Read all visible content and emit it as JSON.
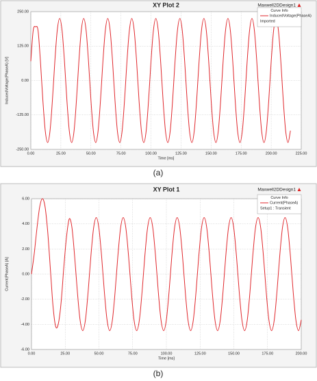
{
  "chart_data": [
    {
      "type": "line",
      "title": "XY Plot 2",
      "design": "Maxwell2DDesign1",
      "caption": "(a)",
      "xlabel": "Time [ms]",
      "ylabel": "InducedVoltage(PhaseA) [V]",
      "legend_title": "Curve Info",
      "grid": true,
      "x": [
        0,
        2,
        4,
        6,
        8,
        10,
        12,
        14,
        16,
        18,
        20,
        22,
        24,
        26,
        28,
        30,
        32,
        34,
        36,
        38,
        40,
        42,
        44,
        46,
        48,
        50,
        52,
        54,
        56,
        58,
        60,
        62,
        64,
        66,
        68,
        70,
        72,
        74,
        76,
        78,
        80,
        82,
        84,
        86,
        88,
        90,
        92,
        94,
        96,
        98,
        100,
        102,
        104,
        106,
        108,
        110,
        112,
        114,
        116,
        118,
        120,
        122,
        124,
        126,
        128,
        130,
        132,
        134,
        136,
        138,
        140,
        142,
        144,
        146,
        148,
        150,
        152,
        154,
        156,
        158,
        160,
        162,
        164,
        166,
        168,
        170,
        172,
        174,
        176,
        178,
        180,
        182,
        184,
        186,
        188,
        190,
        192,
        194,
        196,
        198,
        200,
        202,
        204,
        206,
        208,
        210,
        212,
        214,
        216
      ],
      "series": [
        {
          "name": "InducedVoltage(PhaseA)",
          "source": "Imported",
          "color": "#e0262b",
          "values": [
            70,
            182,
            195,
            182,
            70,
            -70,
            -182,
            -225,
            -182,
            -70,
            70,
            182,
            225,
            182,
            70,
            -70,
            -182,
            -225,
            -182,
            -70,
            70,
            182,
            225,
            182,
            70,
            -70,
            -182,
            -225,
            -182,
            -70,
            70,
            182,
            225,
            182,
            70,
            -70,
            -182,
            -225,
            -182,
            -70,
            70,
            182,
            225,
            182,
            70,
            -70,
            -182,
            -225,
            -182,
            -70,
            70,
            182,
            225,
            182,
            70,
            -70,
            -182,
            -225,
            -182,
            -70,
            70,
            182,
            225,
            182,
            70,
            -70,
            -182,
            -225,
            -182,
            -70,
            70,
            182,
            225,
            182,
            70,
            -70,
            -182,
            -225,
            -182,
            -70,
            70,
            182,
            225,
            182,
            70,
            -70,
            -182,
            -225,
            -182,
            -70,
            70,
            182,
            225,
            182,
            70,
            -70,
            -182,
            -225,
            -182,
            -70,
            70,
            182,
            225,
            182,
            70,
            -70,
            -182,
            -225,
            -182
          ]
        }
      ],
      "xlim": [
        0,
        225
      ],
      "xticks": [
        {
          "value": 0,
          "label": "0.00"
        },
        {
          "value": 25,
          "label": "25.00"
        },
        {
          "value": 50,
          "label": "50.00"
        },
        {
          "value": 75,
          "label": "75.00"
        },
        {
          "value": 100,
          "label": "100.00"
        },
        {
          "value": 125,
          "label": "125.00"
        },
        {
          "value": 150,
          "label": "150.00"
        },
        {
          "value": 175,
          "label": "175.00"
        },
        {
          "value": 200,
          "label": "200.00"
        },
        {
          "value": 225,
          "label": "225.00"
        }
      ],
      "ylim": [
        -250,
        250
      ],
      "yticks": [
        {
          "value": -250,
          "label": "-250.00"
        },
        {
          "value": -125,
          "label": "-125.00"
        },
        {
          "value": 0,
          "label": "0.00"
        },
        {
          "value": 125,
          "label": "125.00"
        },
        {
          "value": 250,
          "label": "250.00"
        }
      ]
    },
    {
      "type": "line",
      "title": "XY Plot 1",
      "design": "Maxwell2DDesign1",
      "caption": "(b)",
      "xlabel": "Time [ms]",
      "ylabel": "Current(PhaseA) [A]",
      "legend_title": "Curve Info",
      "grid": true,
      "x": [
        0,
        2,
        4,
        6,
        8,
        10,
        12,
        14,
        16,
        18,
        20,
        22,
        24,
        26,
        28,
        30,
        32,
        34,
        36,
        38,
        40,
        42,
        44,
        46,
        48,
        50,
        52,
        54,
        56,
        58,
        60,
        62,
        64,
        66,
        68,
        70,
        72,
        74,
        76,
        78,
        80,
        82,
        84,
        86,
        88,
        90,
        92,
        94,
        96,
        98,
        100,
        102,
        104,
        106,
        108,
        110,
        112,
        114,
        116,
        118,
        120,
        122,
        124,
        126,
        128,
        130,
        132,
        134,
        136,
        138,
        140,
        142,
        144,
        146,
        148,
        150,
        152,
        154,
        156,
        158,
        160,
        162,
        164,
        166,
        168,
        170,
        172,
        174,
        176,
        178,
        180,
        182,
        184,
        186,
        188,
        190,
        192,
        194,
        196,
        198,
        200
      ],
      "series": [
        {
          "name": "Current(PhaseA)",
          "source": "Setup1 : Transient",
          "color": "#e0262b",
          "values": [
            0,
            1.6,
            3.6,
            5.3,
            6.0,
            5.4,
            3.4,
            0.4,
            -2.6,
            -4.2,
            -3.9,
            -2.2,
            0.6,
            3.0,
            4.4,
            3.7,
            1.39,
            -1.39,
            -3.64,
            -4.5,
            -3.64,
            -1.39,
            1.39,
            3.64,
            4.5,
            3.64,
            1.39,
            -1.39,
            -3.64,
            -4.5,
            -3.64,
            -1.39,
            1.39,
            3.64,
            4.5,
            3.64,
            1.39,
            -1.39,
            -3.64,
            -4.5,
            -3.64,
            -1.39,
            1.39,
            3.64,
            4.5,
            3.64,
            1.39,
            -1.39,
            -3.64,
            -4.5,
            -3.64,
            -1.39,
            1.39,
            3.64,
            4.5,
            3.64,
            1.39,
            -1.39,
            -3.64,
            -4.5,
            -3.64,
            -1.39,
            1.39,
            3.64,
            4.5,
            3.64,
            1.39,
            -1.39,
            -3.64,
            -4.5,
            -3.64,
            -1.39,
            1.39,
            3.64,
            4.5,
            3.64,
            1.39,
            -1.39,
            -3.64,
            -4.5,
            -3.64,
            -1.39,
            1.39,
            3.64,
            4.5,
            3.64,
            1.39,
            -1.39,
            -3.64,
            -4.5,
            -3.64,
            -1.39,
            1.39,
            3.64,
            4.5,
            3.64,
            1.39,
            -1.39,
            -3.64,
            -4.5,
            -3.64
          ]
        }
      ],
      "xlim": [
        0,
        200
      ],
      "xticks": [
        {
          "value": 0,
          "label": "0.00"
        },
        {
          "value": 25,
          "label": "25.00"
        },
        {
          "value": 50,
          "label": "50.00"
        },
        {
          "value": 75,
          "label": "75.00"
        },
        {
          "value": 100,
          "label": "100.00"
        },
        {
          "value": 125,
          "label": "125.00"
        },
        {
          "value": 150,
          "label": "150.00"
        },
        {
          "value": 175,
          "label": "175.00"
        },
        {
          "value": 200,
          "label": "200.00"
        }
      ],
      "ylim": [
        -6,
        6
      ],
      "yticks": [
        {
          "value": -6,
          "label": "-6.00"
        },
        {
          "value": -4,
          "label": "-4.00"
        },
        {
          "value": -2,
          "label": "-2.00"
        },
        {
          "value": 0,
          "label": "0.00"
        },
        {
          "value": 2,
          "label": "2.00"
        },
        {
          "value": 4,
          "label": "4.00"
        },
        {
          "value": 6,
          "label": "6.00"
        }
      ]
    }
  ]
}
